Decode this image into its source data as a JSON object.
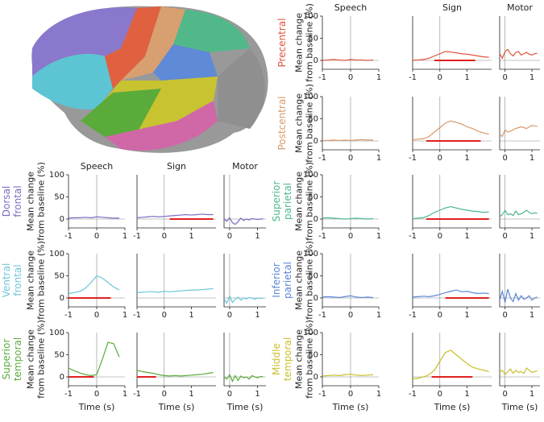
{
  "chart_data": [
    {
      "type": "line",
      "title": "Speech",
      "row_label": [
        "Dorsal",
        "frontal"
      ],
      "ylabel": [
        "Mean change",
        "from baseline (%)"
      ],
      "color": "#7b6cc4",
      "xlim": [
        -1,
        1
      ],
      "xticks": [
        -1,
        0,
        1
      ],
      "ylim": [
        -20,
        100
      ],
      "yticks": [
        0,
        50,
        100
      ],
      "x": [
        -1,
        -0.8,
        -0.6,
        -0.4,
        -0.2,
        0,
        0.2,
        0.4,
        0.6,
        0.8
      ],
      "values": [
        2,
        3,
        3,
        4,
        3,
        5,
        4,
        3,
        2,
        2
      ]
    },
    {
      "type": "line",
      "title": "Sign",
      "color": "#7b6cc4",
      "xlim": [
        -1,
        1.9
      ],
      "xticks": [
        -1,
        0,
        1
      ],
      "ylim": [
        -20,
        100
      ],
      "x": [
        -1,
        -0.8,
        -0.6,
        -0.4,
        -0.2,
        0,
        0.2,
        0.4,
        0.6,
        0.8,
        1,
        1.2,
        1.4,
        1.6,
        1.8
      ],
      "values": [
        3,
        4,
        5,
        6,
        5,
        6,
        7,
        8,
        9,
        10,
        9,
        10,
        11,
        10,
        10
      ],
      "sig": [
        0.2,
        1.8
      ]
    },
    {
      "type": "line",
      "title": "Motor",
      "color": "#7b6cc4",
      "xlim": [
        -0.2,
        1.3
      ],
      "xticks": [
        0,
        1
      ],
      "ylim": [
        -20,
        100
      ],
      "x": [
        -0.2,
        -0.1,
        0,
        0.1,
        0.2,
        0.3,
        0.4,
        0.5,
        0.6,
        0.7,
        0.8,
        0.9,
        1,
        1.1,
        1.2
      ],
      "values": [
        0,
        -5,
        3,
        -8,
        -12,
        -6,
        2,
        -3,
        0,
        -2,
        1,
        0,
        -1,
        0,
        0
      ]
    },
    {
      "type": "line",
      "row_label": [
        "Ventral",
        "frontal"
      ],
      "ylabel": [
        "Mean change",
        "from baseline (%)"
      ],
      "color": "#6cc6d8",
      "xlim": [
        -1,
        1
      ],
      "xticks": [
        -1,
        0,
        1
      ],
      "ylim": [
        -20,
        100
      ],
      "yticks": [
        0,
        50,
        100
      ],
      "x": [
        -1,
        -0.8,
        -0.6,
        -0.4,
        -0.2,
        0,
        0.2,
        0.4,
        0.6,
        0.8
      ],
      "values": [
        10,
        12,
        15,
        22,
        35,
        50,
        45,
        35,
        25,
        18
      ],
      "sig": [
        -1,
        0.5
      ]
    },
    {
      "type": "line",
      "color": "#6cc6d8",
      "xlim": [
        -1,
        1.9
      ],
      "xticks": [
        -1,
        0,
        1
      ],
      "ylim": [
        -20,
        100
      ],
      "x": [
        -1,
        -0.8,
        -0.6,
        -0.4,
        -0.2,
        0,
        0.2,
        0.4,
        0.6,
        0.8,
        1,
        1.2,
        1.4,
        1.6,
        1.8
      ],
      "values": [
        12,
        13,
        14,
        14,
        13,
        15,
        14,
        15,
        16,
        17,
        18,
        18,
        19,
        20,
        21
      ]
    },
    {
      "type": "line",
      "color": "#6cc6d8",
      "xlim": [
        -0.2,
        1.3
      ],
      "xticks": [
        0,
        1
      ],
      "ylim": [
        -20,
        100
      ],
      "x": [
        -0.2,
        -0.1,
        0,
        0.1,
        0.2,
        0.3,
        0.4,
        0.5,
        0.6,
        0.7,
        0.8,
        0.9,
        1,
        1.1,
        1.2
      ],
      "values": [
        -2,
        -12,
        5,
        -10,
        -3,
        2,
        -5,
        0,
        -2,
        1,
        0,
        -3,
        0,
        -1,
        0
      ]
    },
    {
      "type": "line",
      "row_label": [
        "Superior",
        "temporal"
      ],
      "ylabel": [
        "Mean change",
        "from baseline (%)"
      ],
      "xlabel": "Time (s)",
      "color": "#5aab3a",
      "xlim": [
        -1,
        1
      ],
      "xticks": [
        -1,
        0,
        1
      ],
      "ylim": [
        -20,
        100
      ],
      "yticks": [
        0,
        50,
        100
      ],
      "x": [
        -1,
        -0.8,
        -0.6,
        -0.4,
        -0.2,
        0,
        0.2,
        0.4,
        0.6,
        0.8
      ],
      "values": [
        20,
        14,
        9,
        5,
        3,
        5,
        40,
        78,
        75,
        45
      ],
      "sig": [
        -1,
        -0.1
      ]
    },
    {
      "type": "line",
      "xlabel": "Time (s)",
      "color": "#5aab3a",
      "xlim": [
        -1,
        1.9
      ],
      "xticks": [
        -1,
        0,
        1
      ],
      "ylim": [
        -20,
        100
      ],
      "x": [
        -1,
        -0.8,
        -0.6,
        -0.4,
        -0.2,
        0,
        0.2,
        0.4,
        0.6,
        0.8,
        1,
        1.2,
        1.4,
        1.6,
        1.8
      ],
      "values": [
        15,
        12,
        10,
        8,
        5,
        3,
        2,
        3,
        2,
        3,
        4,
        5,
        6,
        8,
        10
      ],
      "sig": [
        -1,
        -0.3
      ]
    },
    {
      "type": "line",
      "xlabel": "Time (s)",
      "color": "#5aab3a",
      "xlim": [
        -0.2,
        1.3
      ],
      "xticks": [
        0,
        1
      ],
      "ylim": [
        -20,
        100
      ],
      "x": [
        -0.2,
        -0.1,
        0,
        0.1,
        0.2,
        0.3,
        0.4,
        0.5,
        0.6,
        0.7,
        0.8,
        0.9,
        1,
        1.1,
        1.2
      ],
      "values": [
        0,
        -5,
        5,
        -10,
        3,
        -8,
        2,
        -2,
        0,
        -5,
        3,
        0,
        -2,
        1,
        0
      ]
    },
    {
      "type": "line",
      "title": "Speech",
      "row_label": [
        "Precentral"
      ],
      "ylabel": [
        "Mean change",
        "from baseline (%)"
      ],
      "color": "#e0533c",
      "xlim": [
        -1,
        1
      ],
      "xticks": [
        -1,
        0,
        1
      ],
      "ylim": [
        -20,
        100
      ],
      "yticks": [
        0,
        50,
        100
      ],
      "x": [
        -1,
        -0.8,
        -0.6,
        -0.4,
        -0.2,
        0,
        0.2,
        0.4,
        0.6,
        0.8
      ],
      "values": [
        0,
        1,
        2,
        1,
        0,
        2,
        1,
        1,
        0,
        1
      ]
    },
    {
      "type": "line",
      "title": "Sign",
      "color": "#e0533c",
      "xlim": [
        -1,
        1.9
      ],
      "xticks": [
        -1,
        0,
        1
      ],
      "ylim": [
        -20,
        100
      ],
      "x": [
        -1,
        -0.8,
        -0.6,
        -0.4,
        -0.2,
        0,
        0.2,
        0.4,
        0.6,
        0.8,
        1,
        1.2,
        1.4,
        1.6,
        1.8
      ],
      "values": [
        0,
        1,
        2,
        5,
        10,
        15,
        20,
        19,
        17,
        15,
        14,
        12,
        10,
        8,
        7
      ],
      "sig": [
        -0.2,
        1.3
      ]
    },
    {
      "type": "line",
      "title": "Motor",
      "color": "#e0533c",
      "xlim": [
        -0.2,
        1.3
      ],
      "xticks": [
        0,
        1
      ],
      "ylim": [
        -20,
        100
      ],
      "x": [
        -0.2,
        -0.1,
        0,
        0.1,
        0.2,
        0.3,
        0.4,
        0.5,
        0.6,
        0.7,
        0.8,
        0.9,
        1,
        1.1,
        1.2
      ],
      "values": [
        15,
        5,
        20,
        25,
        15,
        10,
        18,
        20,
        12,
        15,
        18,
        14,
        12,
        15,
        16
      ]
    },
    {
      "type": "line",
      "row_label": [
        "Postcentral"
      ],
      "ylabel": [
        "Mean change",
        "from baseline (%)"
      ],
      "color": "#d89a6a",
      "xlim": [
        -1,
        1
      ],
      "xticks": [
        -1,
        0,
        1
      ],
      "ylim": [
        -20,
        100
      ],
      "yticks": [
        0,
        50,
        100
      ],
      "x": [
        -1,
        -0.8,
        -0.6,
        -0.4,
        -0.2,
        0,
        0.2,
        0.4,
        0.6,
        0.8
      ],
      "values": [
        1,
        1,
        2,
        1,
        2,
        1,
        2,
        3,
        2,
        2
      ]
    },
    {
      "type": "line",
      "color": "#d89a6a",
      "xlim": [
        -1,
        1.9
      ],
      "xticks": [
        -1,
        0,
        1
      ],
      "ylim": [
        -20,
        100
      ],
      "x": [
        -1,
        -0.8,
        -0.6,
        -0.4,
        -0.2,
        0,
        0.2,
        0.4,
        0.6,
        0.8,
        1,
        1.2,
        1.4,
        1.6,
        1.8
      ],
      "values": [
        3,
        4,
        5,
        10,
        20,
        30,
        40,
        45,
        42,
        38,
        32,
        28,
        22,
        18,
        15
      ],
      "sig": [
        -0.5,
        1.5
      ]
    },
    {
      "type": "line",
      "color": "#d89a6a",
      "xlim": [
        -0.2,
        1.3
      ],
      "xticks": [
        0,
        1
      ],
      "ylim": [
        -20,
        100
      ],
      "x": [
        -0.2,
        -0.1,
        0,
        0.1,
        0.2,
        0.3,
        0.4,
        0.5,
        0.6,
        0.7,
        0.8,
        0.9,
        1,
        1.1,
        1.2
      ],
      "values": [
        15,
        10,
        25,
        20,
        22,
        25,
        28,
        30,
        32,
        30,
        28,
        32,
        35,
        34,
        33
      ]
    },
    {
      "type": "line",
      "row_label": [
        "Superior",
        "parietal"
      ],
      "ylabel": [
        "Mean change",
        "from baseline (%)"
      ],
      "color": "#4db88a",
      "xlim": [
        -1,
        1
      ],
      "xticks": [
        -1,
        0,
        1
      ],
      "ylim": [
        -20,
        100
      ],
      "yticks": [
        0,
        50,
        100
      ],
      "x": [
        -1,
        -0.8,
        -0.6,
        -0.4,
        -0.2,
        0,
        0.2,
        0.4,
        0.6,
        0.8
      ],
      "values": [
        2,
        3,
        2,
        1,
        0,
        1,
        2,
        1,
        0,
        1
      ]
    },
    {
      "type": "line",
      "color": "#4db88a",
      "xlim": [
        -1,
        1.9
      ],
      "xticks": [
        -1,
        0,
        1
      ],
      "ylim": [
        -20,
        100
      ],
      "x": [
        -1,
        -0.8,
        -0.6,
        -0.4,
        -0.2,
        0,
        0.2,
        0.4,
        0.6,
        0.8,
        1,
        1.2,
        1.4,
        1.6,
        1.8
      ],
      "values": [
        1,
        2,
        3,
        8,
        15,
        20,
        25,
        28,
        25,
        22,
        20,
        18,
        17,
        15,
        16
      ],
      "sig": [
        -0.5,
        1.8
      ]
    },
    {
      "type": "line",
      "color": "#4db88a",
      "xlim": [
        -0.2,
        1.3
      ],
      "xticks": [
        0,
        1
      ],
      "ylim": [
        -20,
        100
      ],
      "x": [
        -0.2,
        -0.1,
        0,
        0.1,
        0.2,
        0.3,
        0.4,
        0.5,
        0.6,
        0.7,
        0.8,
        0.9,
        1,
        1.1,
        1.2
      ],
      "values": [
        5,
        10,
        20,
        10,
        12,
        8,
        18,
        10,
        12,
        15,
        20,
        15,
        12,
        14,
        13
      ]
    },
    {
      "type": "line",
      "row_label": [
        "Inferior",
        "parietal"
      ],
      "ylabel": [
        "Mean change",
        "from baseline (%)"
      ],
      "color": "#5b86d6",
      "xlim": [
        -1,
        1
      ],
      "xticks": [
        -1,
        0,
        1
      ],
      "ylim": [
        -20,
        100
      ],
      "yticks": [
        0,
        50,
        100
      ],
      "x": [
        -1,
        -0.8,
        -0.6,
        -0.4,
        -0.2,
        0,
        0.2,
        0.4,
        0.6,
        0.8
      ],
      "values": [
        2,
        3,
        2,
        1,
        3,
        5,
        2,
        1,
        2,
        1
      ]
    },
    {
      "type": "line",
      "color": "#5b86d6",
      "xlim": [
        -1,
        1.9
      ],
      "xticks": [
        -1,
        0,
        1
      ],
      "ylim": [
        -20,
        100
      ],
      "x": [
        -1,
        -0.8,
        -0.6,
        -0.4,
        -0.2,
        0,
        0.2,
        0.4,
        0.6,
        0.8,
        1,
        1.2,
        1.4,
        1.6,
        1.8
      ],
      "values": [
        2,
        3,
        4,
        3,
        5,
        8,
        12,
        15,
        18,
        14,
        15,
        12,
        10,
        11,
        10
      ],
      "sig": [
        0.2,
        1.8
      ]
    },
    {
      "type": "line",
      "color": "#5b86d6",
      "xlim": [
        -0.2,
        1.3
      ],
      "xticks": [
        0,
        1
      ],
      "ylim": [
        -20,
        100
      ],
      "x": [
        -0.2,
        -0.1,
        0,
        0.1,
        0.2,
        0.3,
        0.4,
        0.5,
        0.6,
        0.7,
        0.8,
        0.9,
        1,
        1.1,
        1.2
      ],
      "values": [
        -5,
        15,
        -10,
        20,
        0,
        -8,
        10,
        -5,
        5,
        -3,
        0,
        5,
        -5,
        0,
        2
      ]
    },
    {
      "type": "line",
      "row_label": [
        "Middle",
        "temporal"
      ],
      "ylabel": [
        "Mean change",
        "from baseline (%)"
      ],
      "xlabel": "Time (s)",
      "color": "#c8c02a",
      "xlim": [
        -1,
        1
      ],
      "xticks": [
        -1,
        0,
        1
      ],
      "ylim": [
        -20,
        100
      ],
      "yticks": [
        0,
        50,
        100
      ],
      "x": [
        -1,
        -0.8,
        -0.6,
        -0.4,
        -0.2,
        0,
        0.2,
        0.4,
        0.6,
        0.8
      ],
      "values": [
        2,
        3,
        4,
        3,
        5,
        6,
        4,
        3,
        4,
        5
      ]
    },
    {
      "type": "line",
      "xlabel": "Time (s)",
      "color": "#c8c02a",
      "xlim": [
        -1,
        1.9
      ],
      "xticks": [
        -1,
        0,
        1
      ],
      "ylim": [
        -20,
        100
      ],
      "x": [
        -1,
        -0.8,
        -0.6,
        -0.4,
        -0.2,
        0,
        0.2,
        0.4,
        0.6,
        0.8,
        1,
        1.2,
        1.4,
        1.6,
        1.8
      ],
      "values": [
        -5,
        -3,
        0,
        5,
        15,
        35,
        55,
        60,
        50,
        40,
        30,
        22,
        18,
        15,
        12
      ],
      "sig": [
        -0.3,
        1.2
      ]
    },
    {
      "type": "line",
      "xlabel": "Time (s)",
      "color": "#c8c02a",
      "xlim": [
        -0.2,
        1.3
      ],
      "xticks": [
        0,
        1
      ],
      "ylim": [
        -20,
        100
      ],
      "x": [
        -0.2,
        -0.1,
        0,
        0.1,
        0.2,
        0.3,
        0.4,
        0.5,
        0.6,
        0.7,
        0.8,
        0.9,
        1,
        1.1,
        1.2
      ],
      "values": [
        10,
        15,
        5,
        12,
        18,
        8,
        15,
        10,
        12,
        8,
        20,
        15,
        10,
        12,
        14
      ]
    }
  ]
}
